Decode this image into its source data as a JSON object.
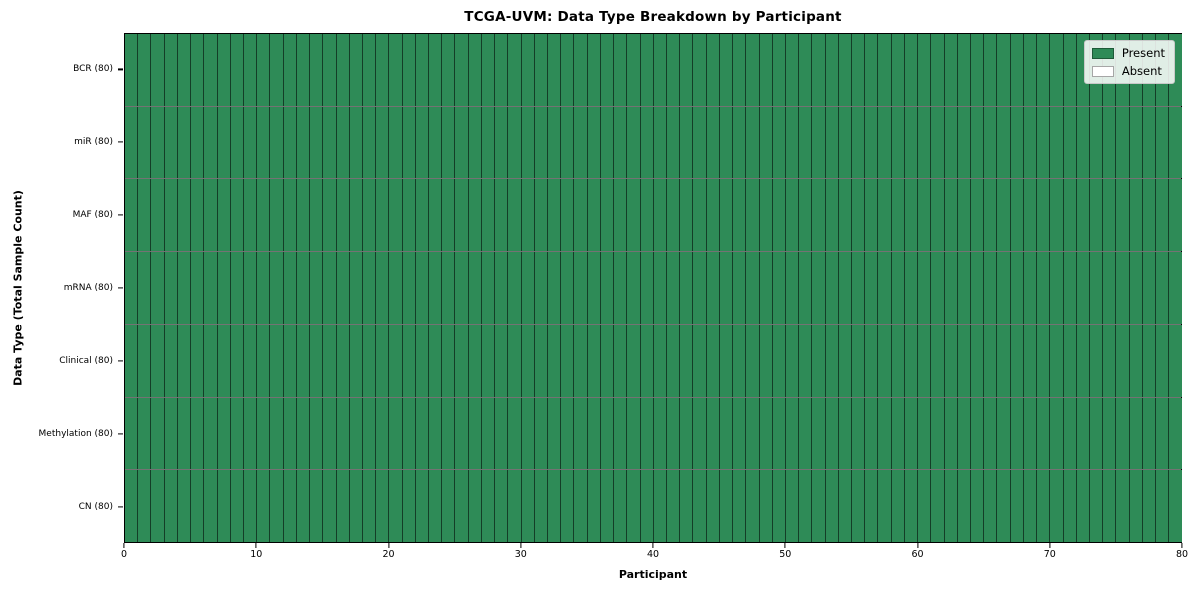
{
  "chart_data": {
    "type": "heatmap",
    "title": "TCGA-UVM: Data Type Breakdown by Participant",
    "xlabel": "Participant",
    "ylabel": "Data Type (Total Sample Count)",
    "xlim": [
      0,
      80
    ],
    "x_ticks": [
      0,
      10,
      20,
      30,
      40,
      50,
      60,
      70,
      80
    ],
    "n_participants": 80,
    "rows": [
      {
        "name": "BCR",
        "label": "BCR (80)",
        "total": 80,
        "present_count": 80
      },
      {
        "name": "miR",
        "label": "miR (80)",
        "total": 80,
        "present_count": 80
      },
      {
        "name": "MAF",
        "label": "MAF (80)",
        "total": 80,
        "present_count": 80
      },
      {
        "name": "mRNA",
        "label": "mRNA (80)",
        "total": 80,
        "present_count": 80
      },
      {
        "name": "Clinical",
        "label": "Clinical (80)",
        "total": 80,
        "present_count": 80
      },
      {
        "name": "Methylation",
        "label": "Methylation (80)",
        "total": 80,
        "present_count": 80
      },
      {
        "name": "CN",
        "label": "CN (80)",
        "total": 80,
        "present_count": 80
      }
    ],
    "legend": [
      {
        "label": "Present",
        "color": "#2e8b57"
      },
      {
        "label": "Absent",
        "color": "#ffffff"
      }
    ],
    "legend_position": "upper right",
    "colors": {
      "present": "#2e8b57",
      "absent": "#ffffff",
      "cell_border": "rgba(0,0,0,0.55)",
      "frame": "#000000"
    },
    "grid": "cell-borders"
  }
}
